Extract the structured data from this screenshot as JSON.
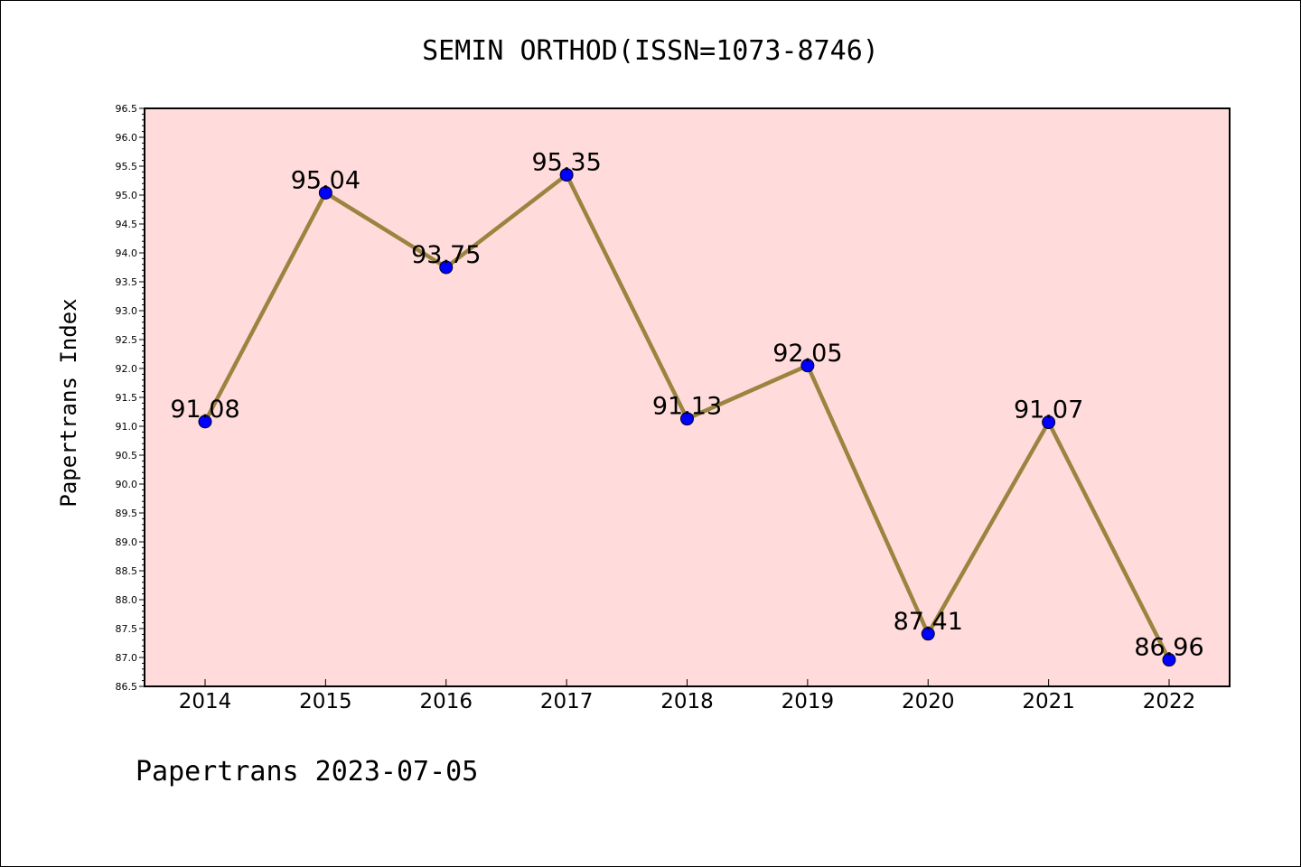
{
  "chart_data": {
    "type": "line",
    "title": "SEMIN ORTHOD(ISSN=1073-8746)",
    "ylabel": "Papertrans Index",
    "xlabel": "",
    "footer": "Papertrans 2023-07-05",
    "categories": [
      "2014",
      "2015",
      "2016",
      "2017",
      "2018",
      "2019",
      "2020",
      "2021",
      "2022"
    ],
    "values": [
      91.08,
      95.04,
      93.75,
      95.35,
      91.13,
      92.05,
      87.41,
      91.07,
      86.96
    ],
    "data_labels": [
      "91.08",
      "95.04",
      "93.75",
      "95.35",
      "91.13",
      "92.05",
      "87.41",
      "91.07",
      "86.96"
    ],
    "ylim": [
      86.5,
      96.5
    ],
    "ytick_step": 0.5,
    "grid": false,
    "colors": {
      "line": "#9b8440",
      "marker": "#0000ff",
      "plot_background": "#ffdcdb"
    }
  }
}
